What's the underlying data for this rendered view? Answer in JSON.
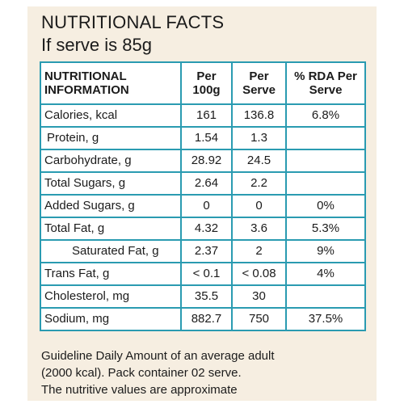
{
  "label": {
    "title": "NUTRITIONAL FACTS",
    "subtitle": "If serve is 85g",
    "accent_color": "#2a9bb1",
    "background_color": "#f6eee1"
  },
  "table": {
    "headers": {
      "info": "NUTRITIONAL INFORMATION",
      "per100g": "Per 100g",
      "perServe": "Per Serve",
      "rda": "% RDA Per Serve"
    },
    "rows": [
      {
        "name": "Calories, kcal",
        "per100g": "161",
        "perServe": "136.8",
        "rda": "6.8%"
      },
      {
        "name": "Protein, g",
        "per100g": "1.54",
        "perServe": "1.3",
        "rda": ""
      },
      {
        "name": "Carbohydrate, g",
        "per100g": "28.92",
        "perServe": "24.5",
        "rda": ""
      },
      {
        "name": "Total Sugars, g",
        "per100g": "2.64",
        "perServe": "2.2",
        "rda": ""
      },
      {
        "name": "Added Sugars, g",
        "per100g": "0",
        "perServe": "0",
        "rda": "0%"
      },
      {
        "name": "Total Fat, g",
        "per100g": "4.32",
        "perServe": "3.6",
        "rda": "5.3%"
      },
      {
        "name": "Saturated Fat, g",
        "per100g": "2.37",
        "perServe": "2",
        "rda": "9%"
      },
      {
        "name": "Trans Fat, g",
        "per100g": "< 0.1",
        "perServe": "< 0.08",
        "rda": "4%"
      },
      {
        "name": "Cholesterol, mg",
        "per100g": "35.5",
        "perServe": "30",
        "rda": ""
      },
      {
        "name": "Sodium, mg",
        "per100g": "882.7",
        "perServe": "750",
        "rda": "37.5%"
      }
    ]
  },
  "footnote": {
    "line1": "Guideline Daily Amount of an average adult",
    "line2": "(2000 kcal). Pack container 02 serve.",
    "line3": "The nutritive values are approximate"
  }
}
